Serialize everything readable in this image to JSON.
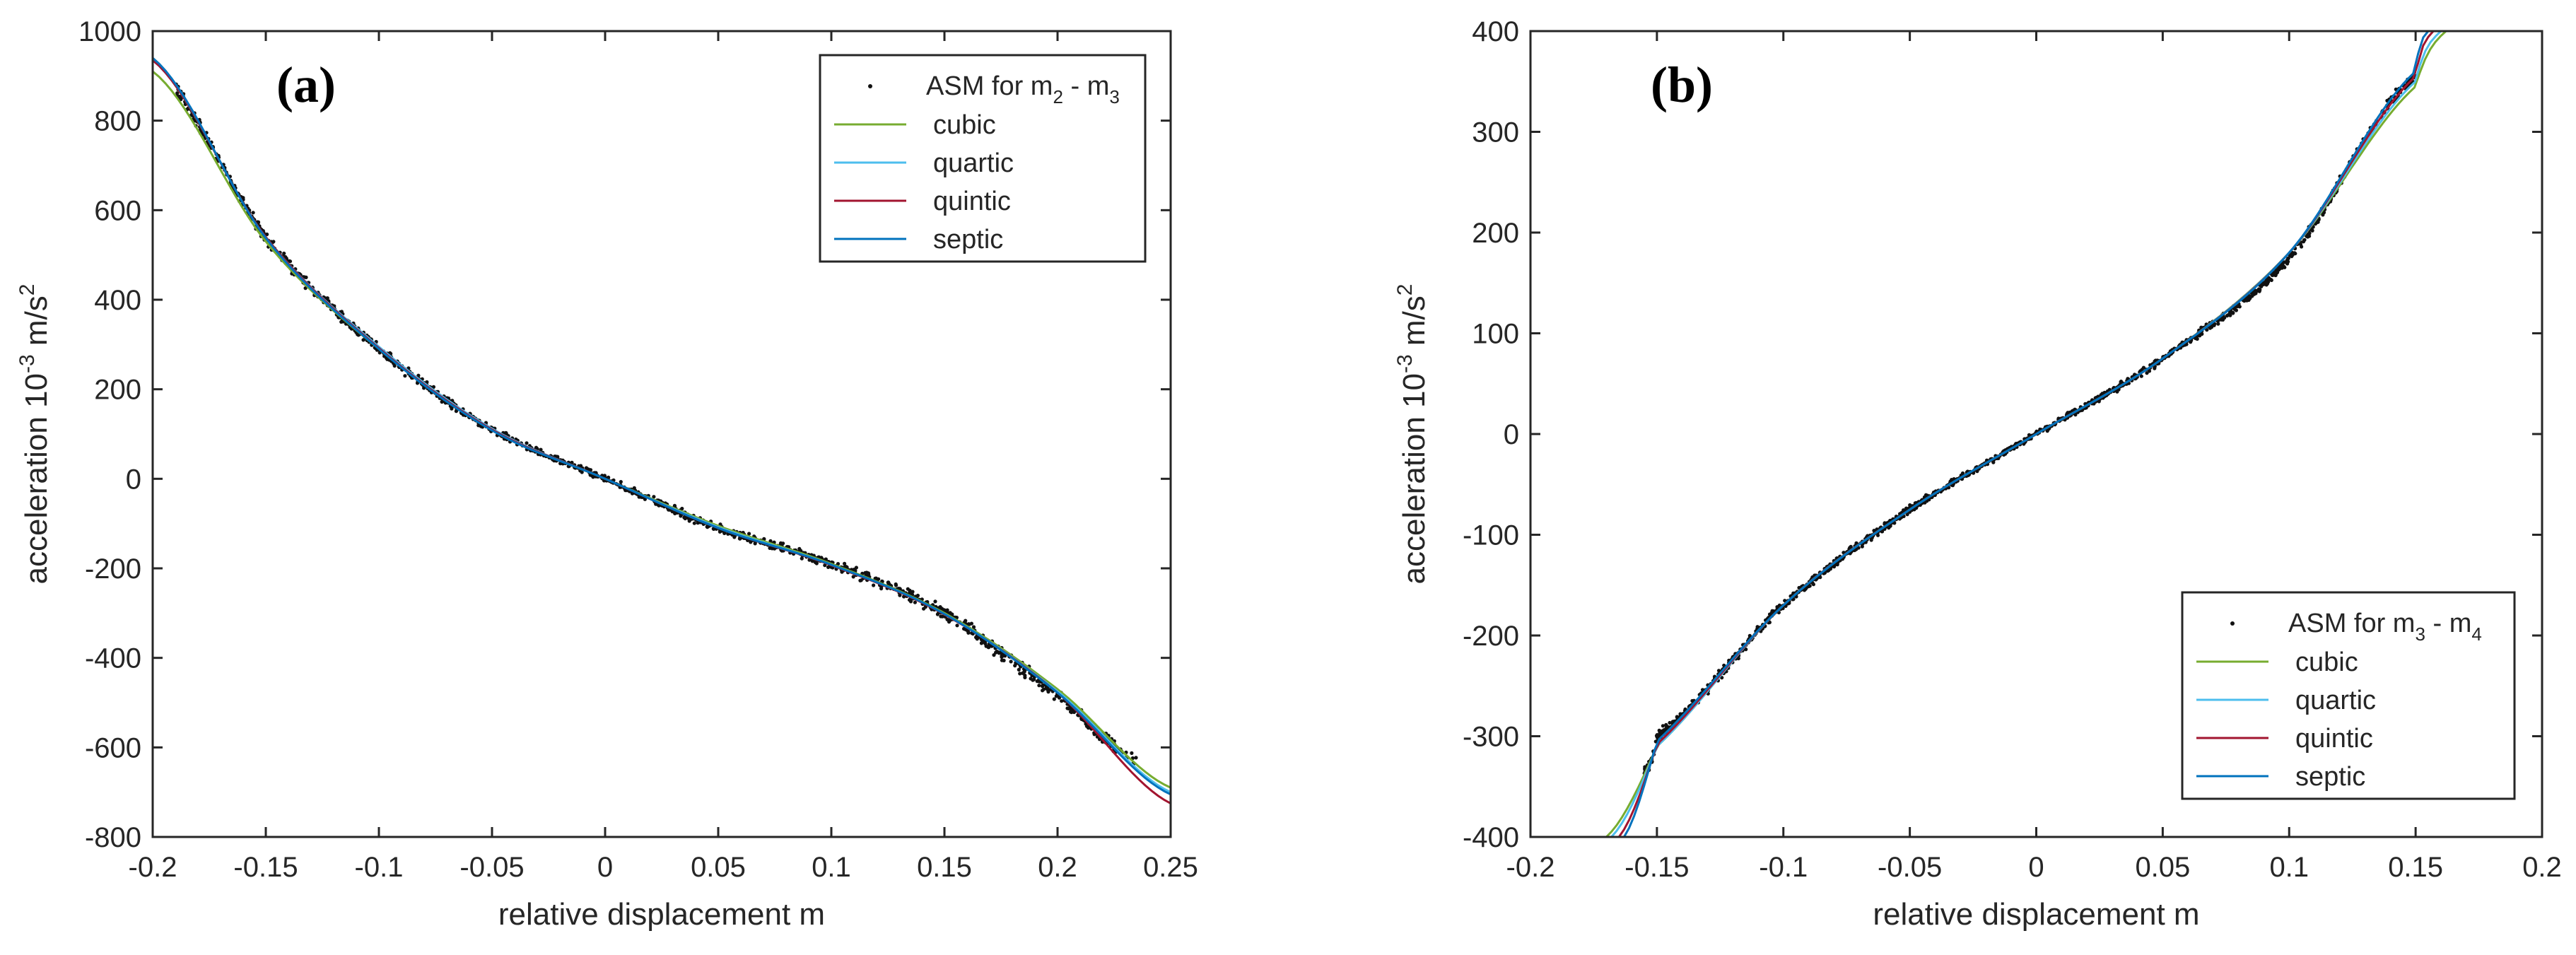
{
  "chart_data": [
    {
      "type": "scatter",
      "panel": "(a)",
      "xlabel": "relative displacement m",
      "ylabel_parts": [
        "acceleration 10",
        "-3",
        " m/s",
        "2"
      ],
      "xlim": [
        -0.2,
        0.25
      ],
      "ylim": [
        -800,
        1000
      ],
      "xticks": [
        -0.2,
        -0.15,
        -0.1,
        -0.05,
        0,
        0.05,
        0.1,
        0.15,
        0.2,
        0.25
      ],
      "xtick_labels": [
        "-0.2",
        "-0.15",
        "-0.1",
        "-0.05",
        "0",
        "0.05",
        "0.1",
        "0.15",
        "0.2",
        "0.25"
      ],
      "yticks": [
        -800,
        -600,
        -400,
        -200,
        0,
        200,
        400,
        600,
        800,
        1000
      ],
      "ytick_labels": [
        "-800",
        "-600",
        "-400",
        "-200",
        "0",
        "200",
        "400",
        "600",
        "800",
        "1000"
      ],
      "legend": {
        "placement": "top-right",
        "scatter_label_parts": [
          "ASM for m",
          "2",
          " - m",
          "3"
        ],
        "entries": [
          "cubic",
          "quartic",
          "quintic",
          "septic"
        ]
      },
      "scatter": {
        "name": "ASM for m2 - m3",
        "x_range": [
          -0.19,
          0.235
        ],
        "approx_curve": {
          "x": [
            -0.2,
            -0.15,
            -0.1,
            -0.05,
            0,
            0.05,
            0.1,
            0.15,
            0.2,
            0.235
          ],
          "y": [
            930,
            540,
            290,
            110,
            0,
            -110,
            -190,
            -300,
            -480,
            -630
          ]
        }
      },
      "series": [
        {
          "name": "cubic",
          "color": "#77ac30",
          "x": [
            -0.2,
            -0.15,
            -0.1,
            -0.05,
            0,
            0.05,
            0.1,
            0.15,
            0.2,
            0.25
          ],
          "y": [
            910,
            530,
            290,
            110,
            0,
            -105,
            -190,
            -300,
            -470,
            -690
          ]
        },
        {
          "name": "quartic",
          "color": "#4dbeee",
          "x": [
            -0.2,
            -0.15,
            -0.1,
            -0.05,
            0,
            0.05,
            0.1,
            0.15,
            0.2,
            0.25
          ],
          "y": [
            935,
            540,
            295,
            112,
            0,
            -108,
            -192,
            -302,
            -475,
            -700
          ]
        },
        {
          "name": "quintic",
          "color": "#a2142f",
          "x": [
            -0.2,
            -0.15,
            -0.1,
            -0.05,
            0,
            0.05,
            0.1,
            0.15,
            0.2,
            0.25
          ],
          "y": [
            935,
            540,
            292,
            110,
            0,
            -110,
            -193,
            -303,
            -478,
            -725
          ]
        },
        {
          "name": "septic",
          "color": "#0072bd",
          "x": [
            -0.2,
            -0.15,
            -0.1,
            -0.05,
            0,
            0.05,
            0.1,
            0.15,
            0.2,
            0.25
          ],
          "y": [
            940,
            538,
            290,
            108,
            0,
            -110,
            -192,
            -302,
            -478,
            -705
          ]
        }
      ]
    },
    {
      "type": "scatter",
      "panel": "(b)",
      "xlabel": "relative displacement m",
      "ylabel_parts": [
        "acceleration 10",
        "-3",
        " m/s",
        "2"
      ],
      "xlim": [
        -0.2,
        0.2
      ],
      "ylim": [
        -400,
        400
      ],
      "xticks": [
        -0.2,
        -0.15,
        -0.1,
        -0.05,
        0,
        0.05,
        0.1,
        0.15,
        0.2
      ],
      "xtick_labels": [
        "-0.2",
        "-0.15",
        "-0.1",
        "-0.05",
        "0",
        "0.05",
        "0.1",
        "0.15",
        "0.2"
      ],
      "yticks": [
        -400,
        -300,
        -200,
        -100,
        0,
        100,
        200,
        300,
        400
      ],
      "ytick_labels": [
        "-400",
        "-300",
        "-200",
        "-100",
        "0",
        "100",
        "200",
        "300",
        "400"
      ],
      "legend": {
        "placement": "bottom-right",
        "scatter_label_parts": [
          "ASM for m",
          "3",
          " - m",
          "4"
        ],
        "entries": [
          "cubic",
          "quartic",
          "quintic",
          "septic"
        ]
      },
      "scatter": {
        "name": "ASM for m3 - m4",
        "x_range": [
          -0.155,
          0.15
        ],
        "approx_curve": {
          "x": [
            -0.155,
            -0.15,
            -0.1,
            -0.05,
            0,
            0.05,
            0.1,
            0.15
          ],
          "y": [
            -335,
            -300,
            -170,
            -75,
            0,
            75,
            175,
            355
          ]
        }
      },
      "series": [
        {
          "name": "cubic",
          "color": "#77ac30",
          "x": [
            -0.17,
            -0.15,
            -0.1,
            -0.05,
            0,
            0.05,
            0.1,
            0.15,
            0.162
          ],
          "y": [
            -400,
            -310,
            -170,
            -75,
            0,
            75,
            180,
            345,
            400
          ]
        },
        {
          "name": "quartic",
          "color": "#4dbeee",
          "x": [
            -0.168,
            -0.15,
            -0.1,
            -0.05,
            0,
            0.05,
            0.1,
            0.15,
            0.16
          ],
          "y": [
            -400,
            -310,
            -170,
            -75,
            0,
            75,
            180,
            350,
            400
          ]
        },
        {
          "name": "quintic",
          "color": "#a2142f",
          "x": [
            -0.165,
            -0.15,
            -0.1,
            -0.05,
            0,
            0.05,
            0.1,
            0.15,
            0.157
          ],
          "y": [
            -400,
            -308,
            -170,
            -75,
            0,
            75,
            180,
            355,
            400
          ]
        },
        {
          "name": "septic",
          "color": "#0072bd",
          "x": [
            -0.163,
            -0.15,
            -0.1,
            -0.05,
            0,
            0.05,
            0.1,
            0.15,
            0.155
          ],
          "y": [
            -400,
            -305,
            -170,
            -75,
            0,
            75,
            180,
            360,
            400
          ]
        }
      ]
    }
  ]
}
